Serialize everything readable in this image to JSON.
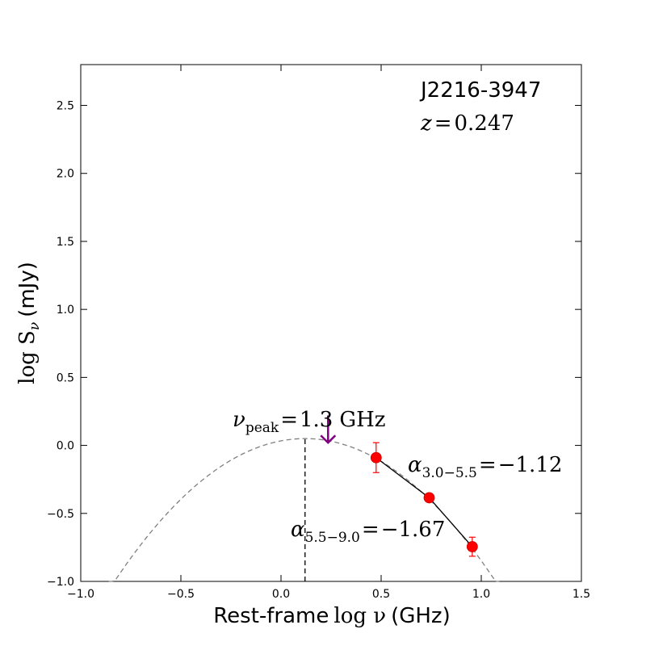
{
  "chart_data": {
    "type": "scatter",
    "source_name": "J2216-3947",
    "redshift_label": "z",
    "redshift_value": "0.247",
    "xlabel_prefix": "Rest-frame",
    "xlabel_math": "log ν",
    "xlabel_unit": "(GHz)",
    "ylabel_math": "log S",
    "ylabel_sub": "ν",
    "ylabel_unit": "(mJy)",
    "xlim": [
      -1.0,
      1.5
    ],
    "ylim": [
      -1.0,
      2.8
    ],
    "x_ticks": [
      -1.0,
      -0.5,
      0.0,
      0.5,
      1.0,
      1.5
    ],
    "x_tick_labels": [
      "−1.0",
      "−0.5",
      "0.0",
      "0.5",
      "1.0",
      "1.5"
    ],
    "y_ticks": [
      -1.0,
      -0.5,
      0.0,
      0.5,
      1.0,
      1.5,
      2.0,
      2.5
    ],
    "y_tick_labels": [
      "−1.0",
      "−0.5",
      "0.0",
      "0.5",
      "1.0",
      "1.5",
      "2.0",
      "2.5"
    ],
    "points": [
      {
        "x": 0.475,
        "y": -0.09,
        "yerr_low": 0.11,
        "yerr_high": 0.11
      },
      {
        "x": 0.74,
        "y": -0.385,
        "yerr_low": 0.02,
        "yerr_high": 0.02
      },
      {
        "x": 0.955,
        "y": -0.745,
        "yerr_low": 0.07,
        "yerr_high": 0.07
      }
    ],
    "model_fit": {
      "style": "dashed",
      "color": "#808080",
      "peak_x": 0.12,
      "peak_y": 0.05,
      "curvature": -1.16,
      "x_range": [
        -0.86,
        1.09
      ]
    },
    "peak_marker": {
      "x": 0.12,
      "y_from": -1.0,
      "y_to": 0.05,
      "style": "dashed",
      "color": "#000000"
    },
    "arrow": {
      "x": 0.235,
      "y_tail": 0.22,
      "y_head": 0.02,
      "color": "#800080"
    },
    "peak_annotation": {
      "symbol": "ν",
      "sub": "peak",
      "value": "1.3",
      "unit": "GHz"
    },
    "alpha_high": {
      "symbol": "α",
      "sub": "3.0−5.5",
      "value": "−1.12"
    },
    "alpha_low": {
      "symbol": "α",
      "sub": "5.5−9.0",
      "value": "−1.67"
    },
    "point_color": "#ff0000",
    "errorbar_color": "#ff0000",
    "segment_color": "#000000"
  }
}
